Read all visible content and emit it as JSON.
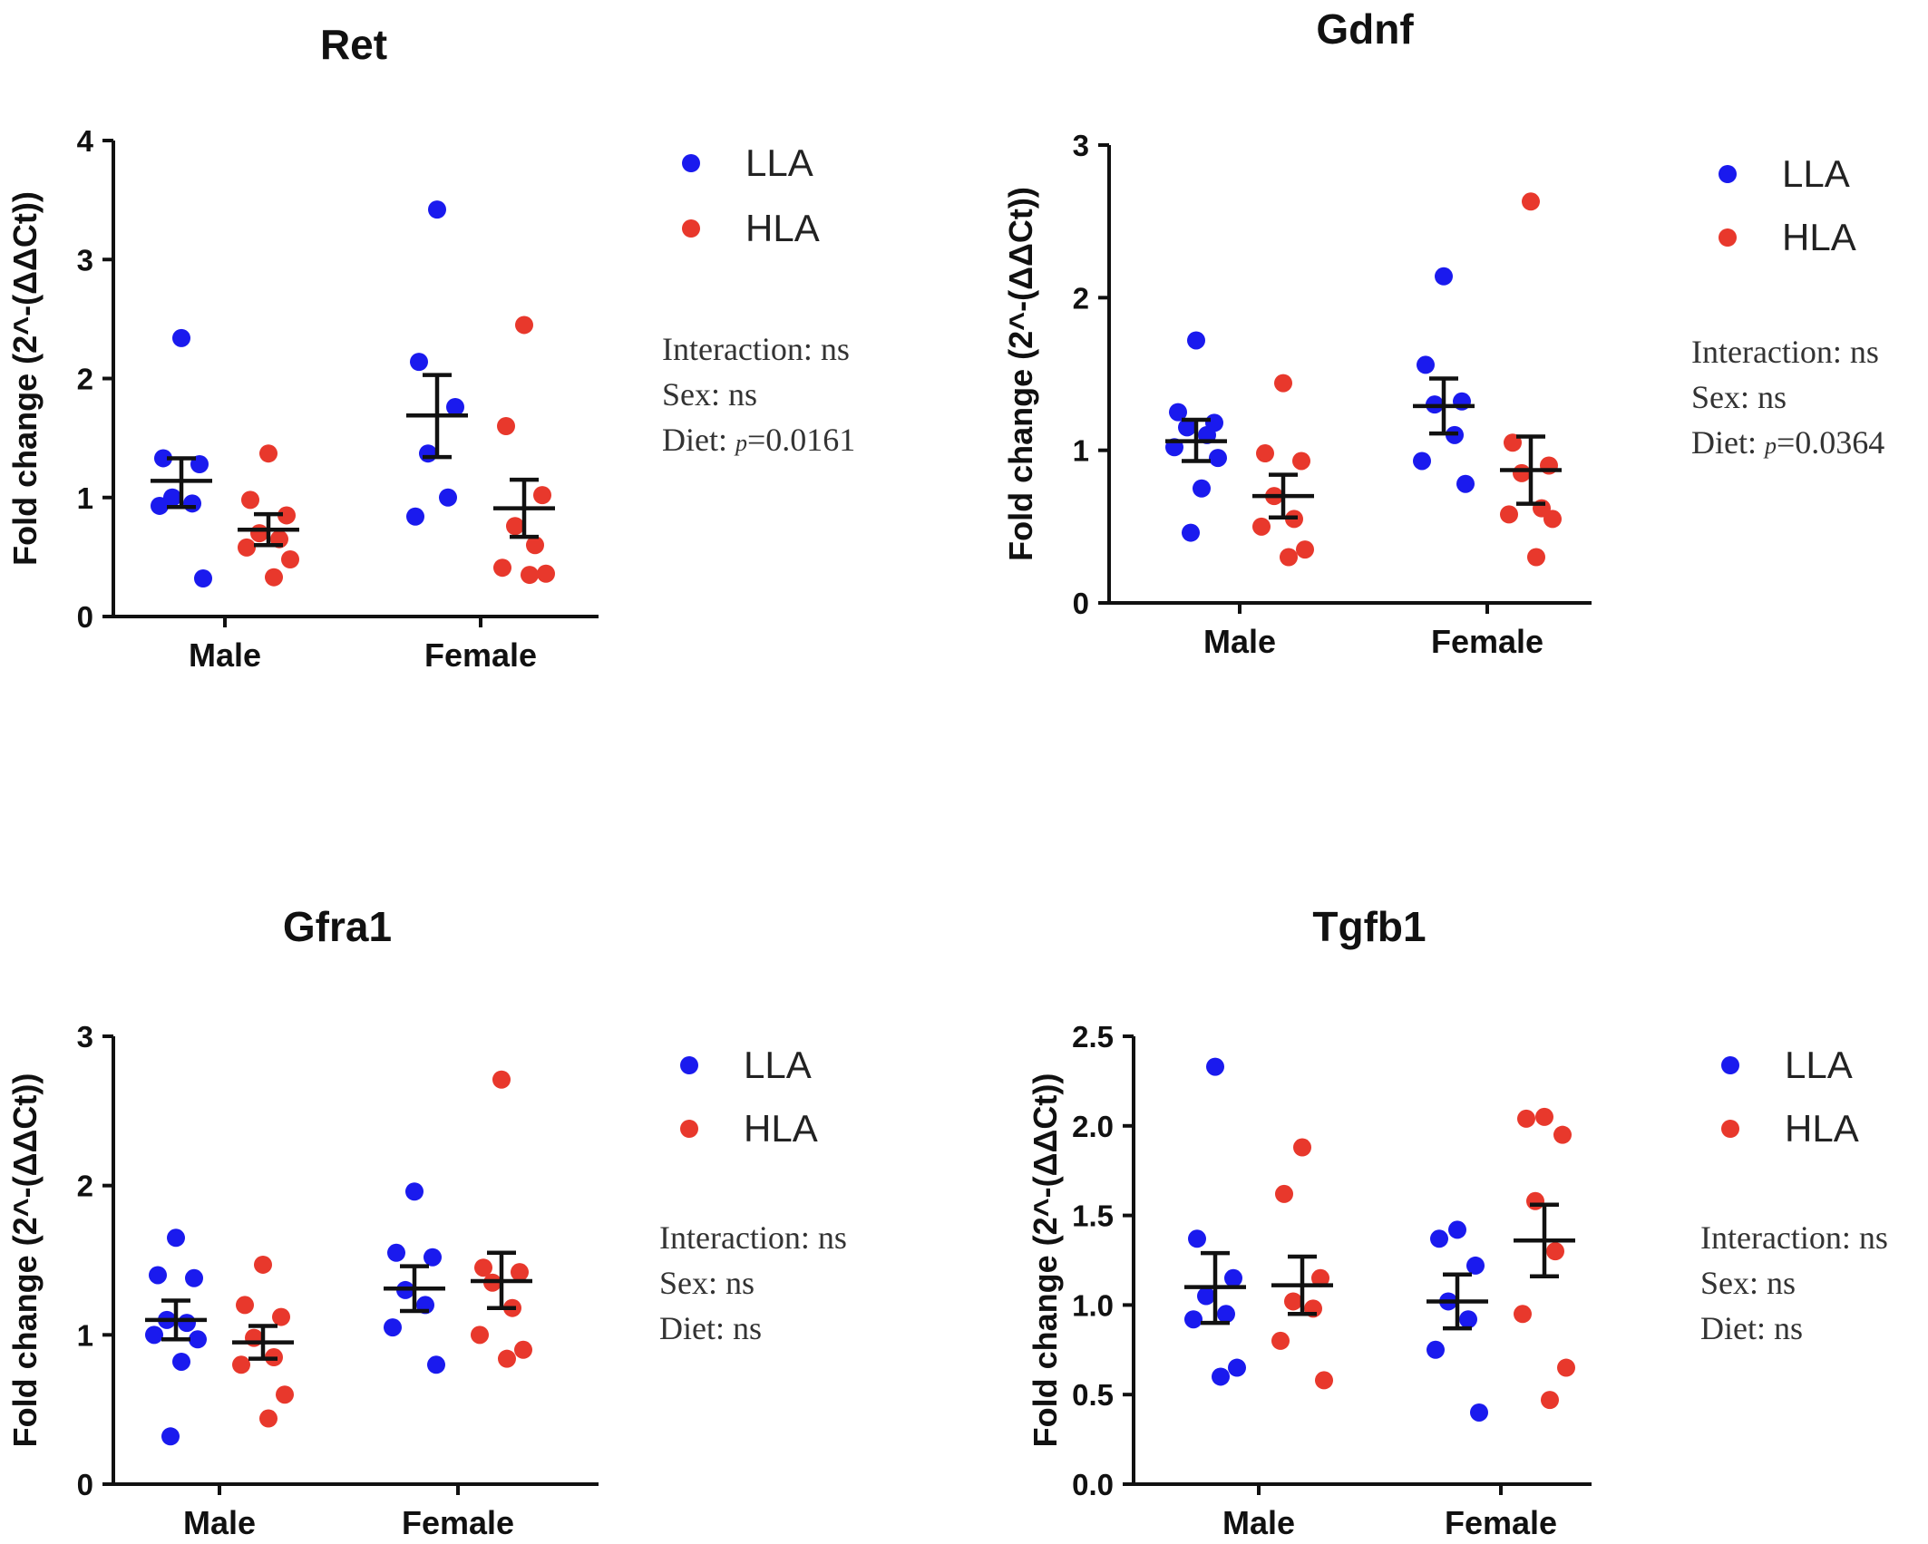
{
  "colors": {
    "LLA": "#1a1aee",
    "HLA": "#e8382c",
    "axis": "#111111"
  },
  "chart_data": [
    {
      "type": "scatter",
      "title": "Ret",
      "ylabel": "Fold change (2^-(ΔΔCt))",
      "categories": [
        "Male",
        "Female"
      ],
      "ylim": [
        0,
        4
      ],
      "yticks": [
        "0",
        "1",
        "2",
        "3",
        "4"
      ],
      "ytick_values": [
        0,
        1,
        2,
        3,
        4
      ],
      "legend": [
        "LLA",
        "HLA"
      ],
      "stats": {
        "interaction": "Interaction: ns",
        "sex": "Sex: ns",
        "diet_prefix": "Diet: ",
        "diet_p": "p",
        "diet_value": "=0.0161"
      },
      "series": [
        {
          "name": "LLA",
          "category": "Male",
          "points": [
            2.34,
            1.33,
            1.28,
            1.0,
            0.95,
            0.93,
            0.32
          ],
          "mean": 1.14,
          "sem_low": 0.92,
          "sem_high": 1.33
        },
        {
          "name": "HLA",
          "category": "Male",
          "points": [
            1.37,
            0.98,
            0.85,
            0.7,
            0.65,
            0.58,
            0.48,
            0.33
          ],
          "mean": 0.73,
          "sem_low": 0.6,
          "sem_high": 0.86
        },
        {
          "name": "LLA",
          "category": "Female",
          "points": [
            3.42,
            2.14,
            1.76,
            1.37,
            1.0,
            0.84
          ],
          "mean": 1.69,
          "sem_low": 1.34,
          "sem_high": 2.03
        },
        {
          "name": "HLA",
          "category": "Female",
          "points": [
            2.45,
            1.6,
            1.02,
            0.76,
            0.6,
            0.41,
            0.36,
            0.35
          ],
          "mean": 0.91,
          "sem_low": 0.67,
          "sem_high": 1.15
        }
      ]
    },
    {
      "type": "scatter",
      "title": "Gdnf",
      "ylabel": "Fold change (2^-(ΔΔCt))",
      "categories": [
        "Male",
        "Female"
      ],
      "ylim": [
        0,
        3
      ],
      "yticks": [
        "0",
        "1",
        "2",
        "3"
      ],
      "ytick_values": [
        0,
        1,
        2,
        3
      ],
      "legend": [
        "LLA",
        "HLA"
      ],
      "stats": {
        "interaction": "Interaction: ns",
        "sex": "Sex: ns",
        "diet_prefix": "Diet: ",
        "diet_p": "p",
        "diet_value": "=0.0364"
      },
      "series": [
        {
          "name": "LLA",
          "category": "Male",
          "points": [
            1.72,
            1.25,
            1.18,
            1.15,
            1.1,
            1.02,
            0.95,
            0.75,
            0.46
          ],
          "mean": 1.06,
          "sem_low": 0.93,
          "sem_high": 1.2
        },
        {
          "name": "HLA",
          "category": "Male",
          "points": [
            1.44,
            0.98,
            0.93,
            0.7,
            0.55,
            0.5,
            0.35,
            0.3
          ],
          "mean": 0.7,
          "sem_low": 0.56,
          "sem_high": 0.84
        },
        {
          "name": "LLA",
          "category": "Female",
          "points": [
            2.14,
            1.56,
            1.32,
            1.3,
            1.1,
            0.93,
            0.78
          ],
          "mean": 1.29,
          "sem_low": 1.11,
          "sem_high": 1.47
        },
        {
          "name": "HLA",
          "category": "Female",
          "points": [
            2.63,
            1.05,
            0.9,
            0.85,
            0.62,
            0.58,
            0.55,
            0.3
          ],
          "mean": 0.87,
          "sem_low": 0.65,
          "sem_high": 1.09
        }
      ]
    },
    {
      "type": "scatter",
      "title": "Gfra1",
      "ylabel": "Fold change (2^-(ΔΔCt))",
      "categories": [
        "Male",
        "Female"
      ],
      "ylim": [
        0,
        3
      ],
      "yticks": [
        "0",
        "1",
        "2",
        "3"
      ],
      "ytick_values": [
        0,
        1,
        2,
        3
      ],
      "legend": [
        "LLA",
        "HLA"
      ],
      "stats": {
        "interaction": "Interaction: ns",
        "sex": "Sex: ns",
        "diet_prefix": "Diet: ns",
        "diet_p": "",
        "diet_value": ""
      },
      "series": [
        {
          "name": "LLA",
          "category": "Male",
          "points": [
            1.65,
            1.4,
            1.38,
            1.1,
            1.08,
            1.0,
            0.97,
            0.82,
            0.32
          ],
          "mean": 1.1,
          "sem_low": 0.97,
          "sem_high": 1.23
        },
        {
          "name": "HLA",
          "category": "Male",
          "points": [
            1.47,
            1.2,
            1.12,
            0.98,
            0.85,
            0.8,
            0.6,
            0.44
          ],
          "mean": 0.95,
          "sem_low": 0.84,
          "sem_high": 1.06
        },
        {
          "name": "LLA",
          "category": "Female",
          "points": [
            1.96,
            1.55,
            1.52,
            1.3,
            1.2,
            1.05,
            0.8
          ],
          "mean": 1.31,
          "sem_low": 1.16,
          "sem_high": 1.46
        },
        {
          "name": "HLA",
          "category": "Female",
          "points": [
            2.71,
            1.45,
            1.42,
            1.35,
            1.18,
            1.0,
            0.9,
            0.84
          ],
          "mean": 1.36,
          "sem_low": 1.18,
          "sem_high": 1.55
        }
      ]
    },
    {
      "type": "scatter",
      "title": "Tgfb1",
      "ylabel": "Fold change (2^-(ΔΔCt))",
      "categories": [
        "Male",
        "Female"
      ],
      "ylim": [
        0,
        2.5
      ],
      "yticks": [
        "0.0",
        "0.5",
        "1.0",
        "1.5",
        "2.0",
        "2.5"
      ],
      "ytick_values": [
        0,
        0.5,
        1.0,
        1.5,
        2.0,
        2.5
      ],
      "legend": [
        "LLA",
        "HLA"
      ],
      "stats": {
        "interaction": "Interaction: ns",
        "sex": "Sex: ns",
        "diet_prefix": "Diet: ns",
        "diet_p": "",
        "diet_value": ""
      },
      "series": [
        {
          "name": "LLA",
          "category": "Male",
          "points": [
            2.33,
            1.37,
            1.15,
            1.05,
            0.95,
            0.92,
            0.65,
            0.6
          ],
          "mean": 1.1,
          "sem_low": 0.9,
          "sem_high": 1.29
        },
        {
          "name": "HLA",
          "category": "Male",
          "points": [
            1.88,
            1.62,
            1.15,
            1.02,
            0.98,
            0.8,
            0.58
          ],
          "mean": 1.11,
          "sem_low": 0.95,
          "sem_high": 1.27
        },
        {
          "name": "LLA",
          "category": "Female",
          "points": [
            1.42,
            1.37,
            1.22,
            1.02,
            0.92,
            0.75,
            0.4
          ],
          "mean": 1.02,
          "sem_low": 0.87,
          "sem_high": 1.17
        },
        {
          "name": "HLA",
          "category": "Female",
          "points": [
            2.05,
            2.04,
            1.95,
            1.58,
            1.3,
            0.95,
            0.65,
            0.47
          ],
          "mean": 1.36,
          "sem_low": 1.16,
          "sem_high": 1.56
        }
      ]
    }
  ]
}
